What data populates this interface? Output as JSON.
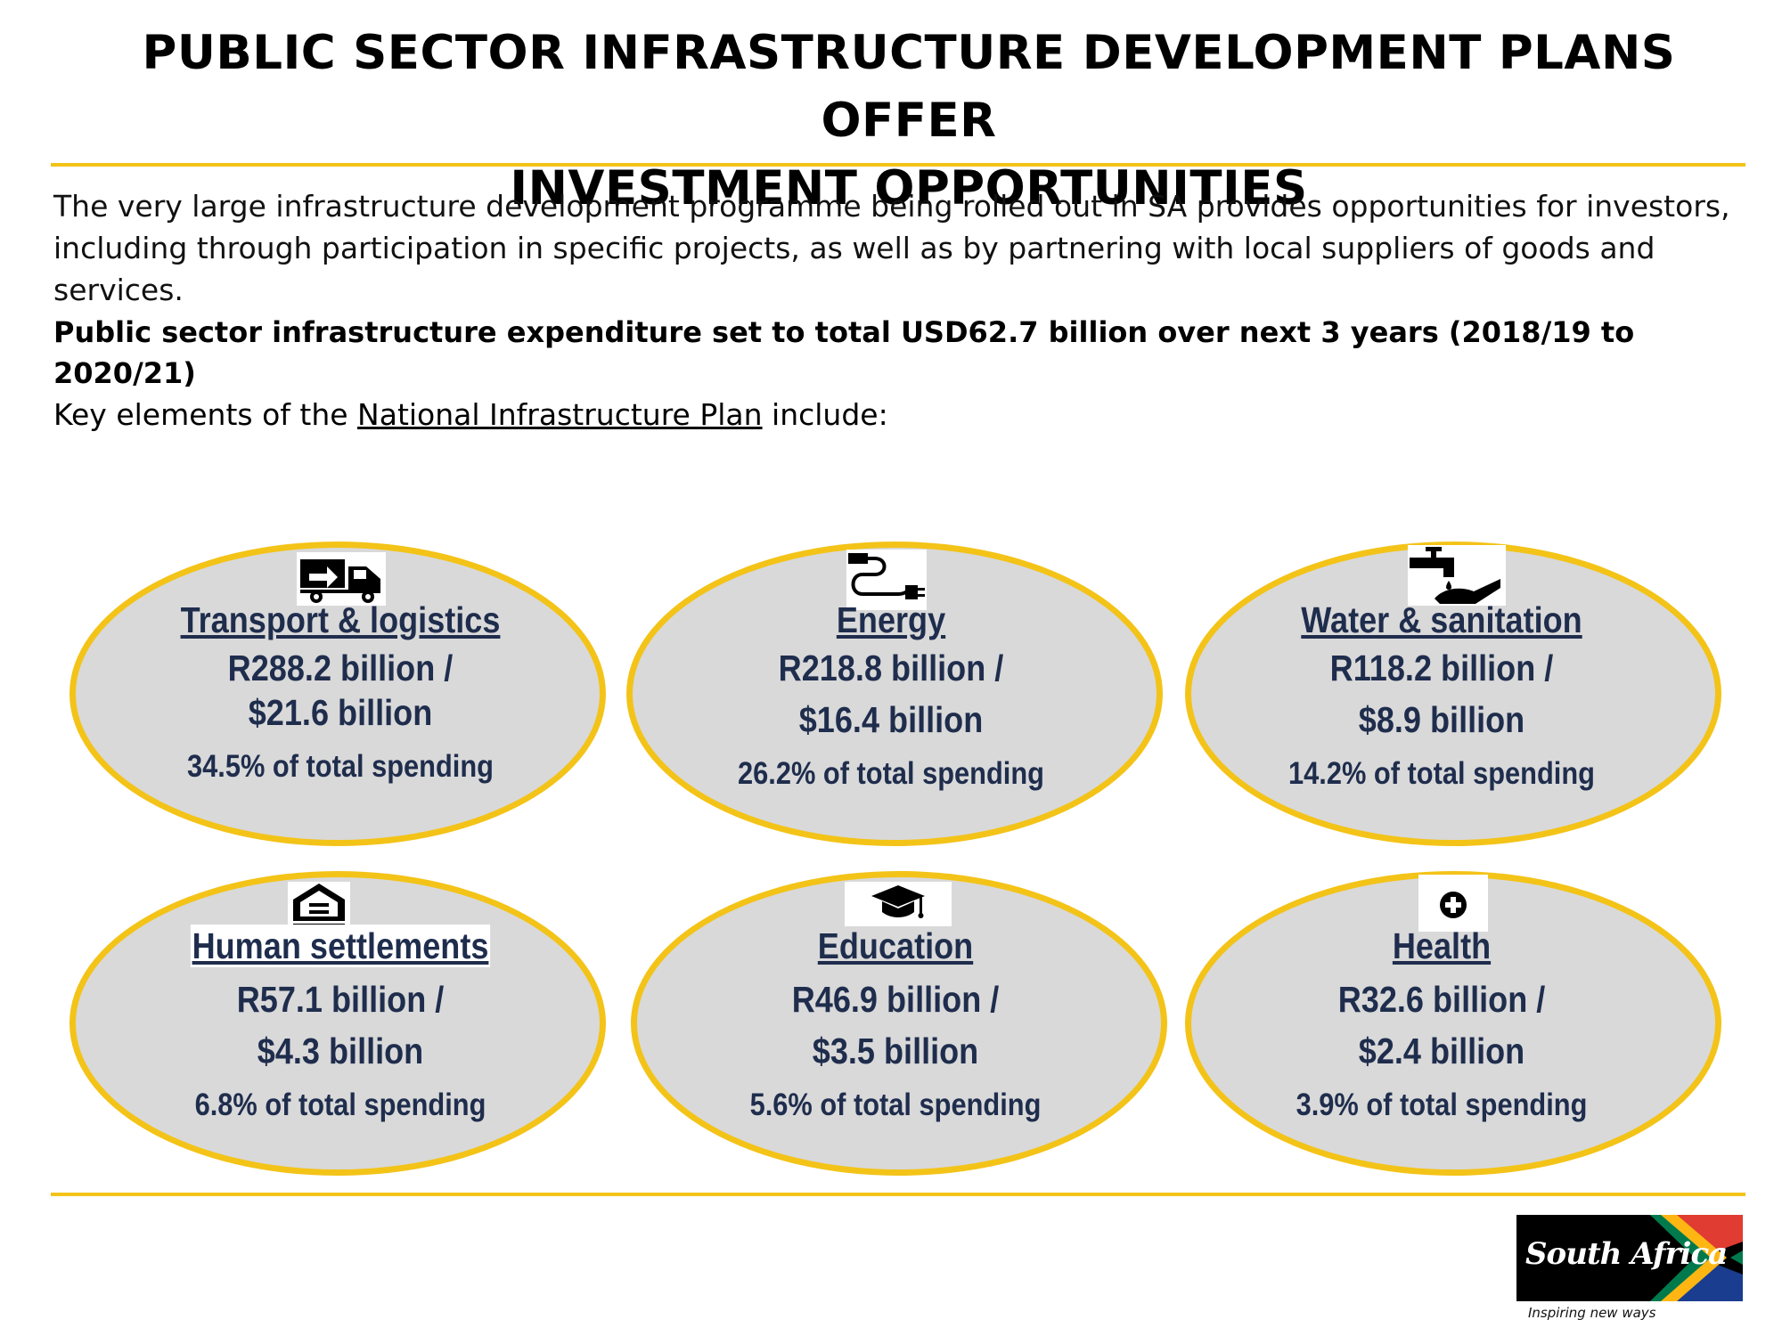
{
  "title": {
    "line1": "PUBLIC SECTOR INFRASTRUCTURE DEVELOPMENT PLANS OFFER",
    "line2": "INVESTMENT OPPORTUNITIES"
  },
  "intro": {
    "line1": "The very large infrastructure development programme being rolled out in SA provides opportunities for investors,",
    "line2": "including through participation in specific projects, as well as by partnering with local suppliers of goods and services."
  },
  "headline": "Public sector infrastructure expenditure set to total USD62.7 billion over next 3 years (2018/19 to 2020/21)",
  "key_elements": {
    "prefix": "Key elements of the ",
    "link": "National Infrastructure Plan",
    "suffix": " include:"
  },
  "sectors": [
    {
      "name": "Transport & logistics",
      "rand": "R288.2 billion /",
      "usd": "$21.6 billion",
      "share": "34.5% of total spending",
      "icon": "truck-icon"
    },
    {
      "name": "Energy",
      "rand": "R218.8 billion /",
      "usd": "$16.4 billion",
      "share": "26.2% of total spending",
      "icon": "power-plug-icon"
    },
    {
      "name": "Water & sanitation",
      "rand": "R118.2 billion /",
      "usd": "$8.9 billion",
      "share": "14.2% of total spending",
      "icon": "water-tap-icon"
    },
    {
      "name": "Human settlements",
      "rand": "R57.1 billion /",
      "usd": "$4.3 billion",
      "share": "6.8% of total spending",
      "icon": "equal-housing-icon"
    },
    {
      "name": "Education",
      "rand": "R46.9 billion /",
      "usd": "$3.5 billion",
      "share": "5.6% of total spending",
      "icon": "graduation-cap-icon"
    },
    {
      "name": "Health",
      "rand": "R32.6 billion /",
      "usd": "$2.4 billion",
      "share": "3.9% of total spending",
      "icon": "health-cross-icon"
    }
  ],
  "logo": {
    "text": "South Africa",
    "tagline": "Inspiring new ways"
  },
  "colors": {
    "accent_yellow": "#f3c318",
    "oval_fill": "#d9d9d9",
    "sector_text": "#1f2d4d"
  }
}
